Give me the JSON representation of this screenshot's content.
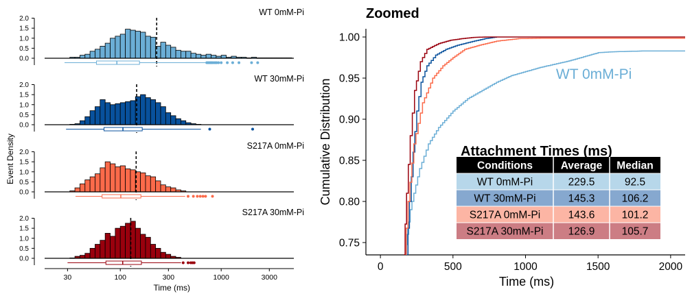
{
  "chart_data": [
    {
      "type": "histogram",
      "scale_x": "log10",
      "xlabel": "Time (ms)",
      "ylabel": "Event Density",
      "xticks": [
        30,
        100,
        300,
        1000,
        3000
      ],
      "yticks": [
        0.0,
        0.5,
        1.0,
        1.5,
        2.0
      ],
      "ylim": [
        0,
        2.0
      ],
      "xlim_log": [
        1.25,
        3.72
      ],
      "bin_width_log": 0.05,
      "panels": [
        {
          "name": "WT 0mM-Pi",
          "color": "#6baed6",
          "mean_marker": 229.5,
          "bin_start_log": 1.5,
          "densities": [
            0.05,
            0.05,
            0.15,
            0.2,
            0.35,
            0.45,
            0.6,
            0.75,
            1.0,
            1.1,
            1.2,
            1.45,
            1.4,
            1.35,
            1.3,
            1.1,
            1.05,
            0.6,
            0.8,
            0.65,
            0.55,
            0.4,
            0.35,
            0.35,
            0.25,
            0.2,
            0.15,
            0.2,
            0.15,
            0.1,
            0.15,
            0.05,
            0.1,
            0.05,
            0.05,
            0.02,
            0.05,
            0.02,
            0.02,
            0.02,
            0.02,
            0.02,
            0.02,
            0.02
          ],
          "box": {
            "whisker_low": 28,
            "q1": 58,
            "median": 92.5,
            "q3": 155,
            "whisker_high": 700
          },
          "outliers": [
            720,
            740,
            760,
            780,
            800,
            820,
            850,
            880,
            900,
            940,
            1000,
            1150,
            1300,
            1500,
            2000,
            2300
          ]
        },
        {
          "name": "WT 30mM-Pi",
          "color": "#08519c",
          "mean_marker": 145.3,
          "bin_start_log": 1.5,
          "densities": [
            0.02,
            0.05,
            0.2,
            0.4,
            0.7,
            0.9,
            1.25,
            1.1,
            1.0,
            1.05,
            1.1,
            1.15,
            1.2,
            1.4,
            1.5,
            1.35,
            1.25,
            1.1,
            0.9,
            0.6,
            0.45,
            0.3,
            0.2,
            0.1,
            0.05,
            0.02
          ],
          "box": {
            "whisker_low": 29,
            "q1": 69,
            "median": 106.2,
            "q3": 165,
            "whisker_high": 630
          },
          "outliers": [
            770,
            2050
          ]
        },
        {
          "name": "S217A 0mM-Pi",
          "color": "#fb6a4a",
          "mean_marker": 143.6,
          "bin_start_log": 1.5,
          "densities": [
            0.05,
            0.2,
            0.4,
            0.6,
            0.75,
            0.9,
            1.2,
            1.5,
            1.4,
            1.25,
            1.3,
            1.15,
            1.1,
            1.0,
            0.95,
            0.8,
            0.75,
            0.55,
            0.35,
            0.25,
            0.2,
            0.1,
            0.05
          ],
          "box": {
            "whisker_low": 36,
            "q1": 66,
            "median": 101.2,
            "q3": 160,
            "whisker_high": 440
          },
          "outliers": [
            470,
            530,
            580,
            620,
            660,
            700,
            820
          ]
        },
        {
          "name": "S217A 30mM-Pi",
          "color": "#99000d",
          "mean_marker": 126.9,
          "bin_start_log": 1.5,
          "densities": [
            0.02,
            0.1,
            0.15,
            0.25,
            0.5,
            0.7,
            0.9,
            1.25,
            1.1,
            1.5,
            1.6,
            1.75,
            1.85,
            1.5,
            1.2,
            1.05,
            0.7,
            0.5,
            0.3,
            0.2,
            0.1,
            0.05
          ],
          "box": {
            "whisker_low": 30,
            "q1": 72,
            "median": 105.7,
            "q3": 162,
            "whisker_high": 400
          },
          "outliers": [
            420,
            470,
            500,
            520,
            540
          ]
        }
      ]
    },
    {
      "type": "line",
      "title": "Zoomed",
      "xlabel": "Time (ms)",
      "ylabel": "Cumulative Distribution",
      "xlim": [
        -100,
        2100
      ],
      "ylim": [
        0.735,
        1.01
      ],
      "xticks": [
        0,
        500,
        1000,
        1500,
        2000
      ],
      "yticks": [
        0.75,
        0.8,
        0.85,
        0.9,
        0.95,
        1.0
      ],
      "annotation": {
        "text": "WT 0mM-Pi",
        "x": 1210,
        "y": 0.949,
        "color": "#6baed6"
      },
      "series": [
        {
          "name": "WT 0mM-Pi",
          "color": "#6baed6",
          "points": [
            [
              175,
              0.735
            ],
            [
              185,
              0.76
            ],
            [
              205,
              0.79
            ],
            [
              230,
              0.81
            ],
            [
              270,
              0.84
            ],
            [
              330,
              0.87
            ],
            [
              400,
              0.89
            ],
            [
              500,
              0.91
            ],
            [
              600,
              0.925
            ],
            [
              700,
              0.935
            ],
            [
              800,
              0.945
            ],
            [
              900,
              0.953
            ],
            [
              1000,
              0.958
            ],
            [
              1100,
              0.963
            ],
            [
              1200,
              0.967
            ],
            [
              1300,
              0.971
            ],
            [
              1400,
              0.976
            ],
            [
              1500,
              0.981
            ],
            [
              1600,
              0.982
            ],
            [
              1800,
              0.983
            ],
            [
              2100,
              0.983
            ]
          ]
        },
        {
          "name": "WT 30mM-Pi",
          "color": "#08519c",
          "points": [
            [
              180,
              0.735
            ],
            [
              200,
              0.8
            ],
            [
              225,
              0.86
            ],
            [
              250,
              0.91
            ],
            [
              280,
              0.945
            ],
            [
              320,
              0.965
            ],
            [
              380,
              0.978
            ],
            [
              450,
              0.985
            ],
            [
              530,
              0.99
            ],
            [
              620,
              0.994
            ],
            [
              720,
              0.998
            ],
            [
              800,
              1.0
            ]
          ]
        },
        {
          "name": "S217A 0mM-Pi",
          "color": "#fb6a4a",
          "points": [
            [
              165,
              0.735
            ],
            [
              190,
              0.8
            ],
            [
              230,
              0.87
            ],
            [
              290,
              0.92
            ],
            [
              360,
              0.95
            ],
            [
              430,
              0.965
            ],
            [
              500,
              0.975
            ],
            [
              580,
              0.985
            ],
            [
              680,
              0.99
            ],
            [
              800,
              0.995
            ],
            [
              950,
              0.998
            ],
            [
              1100,
              0.9985
            ],
            [
              2100,
              0.9985
            ]
          ]
        },
        {
          "name": "S217A 30mM-Pi",
          "color": "#99000d",
          "points": [
            [
              160,
              0.735
            ],
            [
              180,
              0.81
            ],
            [
              205,
              0.88
            ],
            [
              235,
              0.935
            ],
            [
              275,
              0.97
            ],
            [
              320,
              0.985
            ],
            [
              400,
              0.992
            ],
            [
              480,
              0.996
            ],
            [
              560,
              0.998
            ],
            [
              640,
              0.9995
            ],
            [
              720,
              1.0
            ],
            [
              2100,
              1.0
            ]
          ]
        }
      ],
      "table": {
        "title": "Attachment Times (ms)",
        "columns": [
          "Conditions",
          "Average",
          "Median"
        ],
        "rows": [
          {
            "label": "WT 0mM-Pi",
            "average": "229.5",
            "median": "92.5",
            "color": "#b7d7ea"
          },
          {
            "label": "WT 30mM-Pi",
            "average": "145.3",
            "median": "106.2",
            "color": "#86a8cf"
          },
          {
            "label": "S217A 0mM-Pi",
            "average": "143.6",
            "median": "101.2",
            "color": "#fcb5a4"
          },
          {
            "label": "S217A 30mM-Pi",
            "average": "126.9",
            "median": "105.7",
            "color": "#cc7d84"
          }
        ]
      }
    }
  ]
}
